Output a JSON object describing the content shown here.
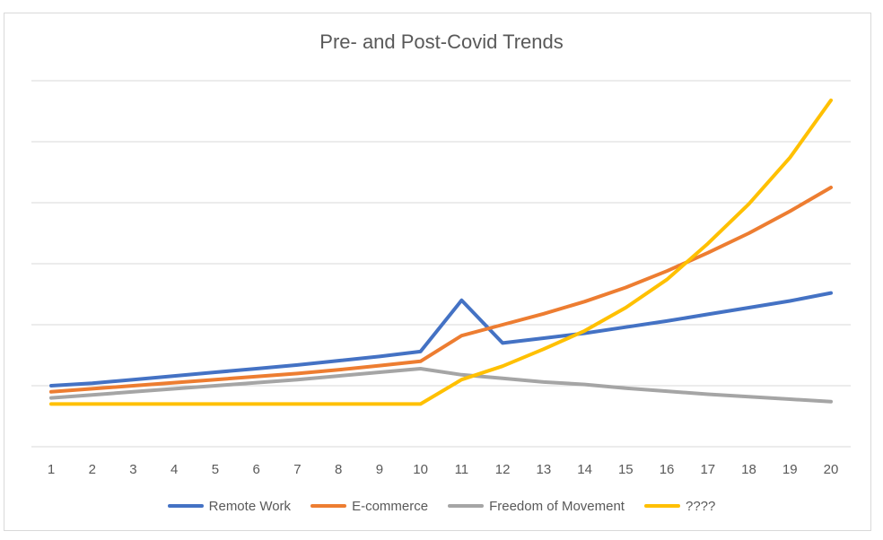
{
  "chart_data": {
    "type": "line",
    "title": "Pre- and Post-Covid Trends",
    "xlabel": "",
    "ylabel": "",
    "x": [
      1,
      2,
      3,
      4,
      5,
      6,
      7,
      8,
      9,
      10,
      11,
      12,
      13,
      14,
      15,
      16,
      17,
      18,
      19,
      20
    ],
    "ylim": [
      0,
      6
    ],
    "y_tick_count": 7,
    "y_tick_labels_shown": false,
    "grid": "horizontal",
    "legend_position": "bottom",
    "series": [
      {
        "name": "Remote Work",
        "color": "#4472c4",
        "values": [
          1.0,
          1.04,
          1.1,
          1.16,
          1.22,
          1.28,
          1.34,
          1.41,
          1.48,
          1.56,
          2.4,
          1.7,
          1.78,
          1.86,
          1.96,
          2.06,
          2.17,
          2.28,
          2.39,
          2.52
        ]
      },
      {
        "name": "E-commerce",
        "color": "#ed7d31",
        "values": [
          0.9,
          0.95,
          1.0,
          1.05,
          1.1,
          1.15,
          1.2,
          1.26,
          1.33,
          1.4,
          1.82,
          2.0,
          2.18,
          2.38,
          2.61,
          2.88,
          3.18,
          3.5,
          3.86,
          4.25
        ]
      },
      {
        "name": "Freedom of Movement",
        "color": "#a5a5a5",
        "values": [
          0.8,
          0.85,
          0.9,
          0.95,
          1.0,
          1.05,
          1.1,
          1.16,
          1.22,
          1.28,
          1.18,
          1.12,
          1.06,
          1.02,
          0.96,
          0.91,
          0.86,
          0.82,
          0.78,
          0.74
        ]
      },
      {
        "name": "????",
        "color": "#ffc000",
        "values": [
          0.7,
          0.7,
          0.7,
          0.7,
          0.7,
          0.7,
          0.7,
          0.7,
          0.7,
          0.7,
          1.1,
          1.32,
          1.6,
          1.9,
          2.28,
          2.74,
          3.33,
          3.98,
          4.74,
          5.68
        ]
      }
    ]
  }
}
